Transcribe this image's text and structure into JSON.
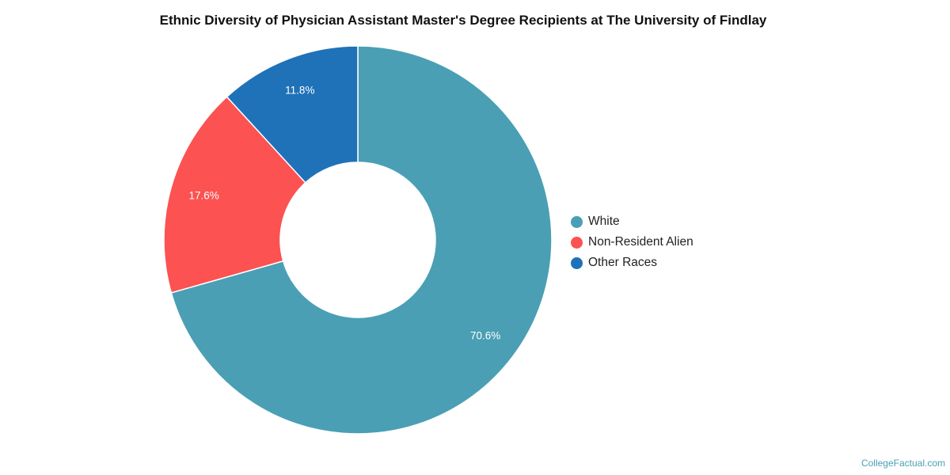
{
  "chart_data": {
    "type": "pie",
    "title": "Ethnic Diversity of Physician Assistant Master's Degree Recipients at The University of Findlay",
    "donut": true,
    "legend_position": "right",
    "slices": [
      {
        "name": "White",
        "value": 70.6,
        "label": "70.6%",
        "color": "#4a9fb5"
      },
      {
        "name": "Non-Resident Alien",
        "value": 17.6,
        "label": "17.6%",
        "color": "#fc5252"
      },
      {
        "name": "Other Races",
        "value": 11.8,
        "label": "11.8%",
        "color": "#1f72b8"
      }
    ]
  },
  "footer": {
    "source": "CollegeFactual.com"
  }
}
